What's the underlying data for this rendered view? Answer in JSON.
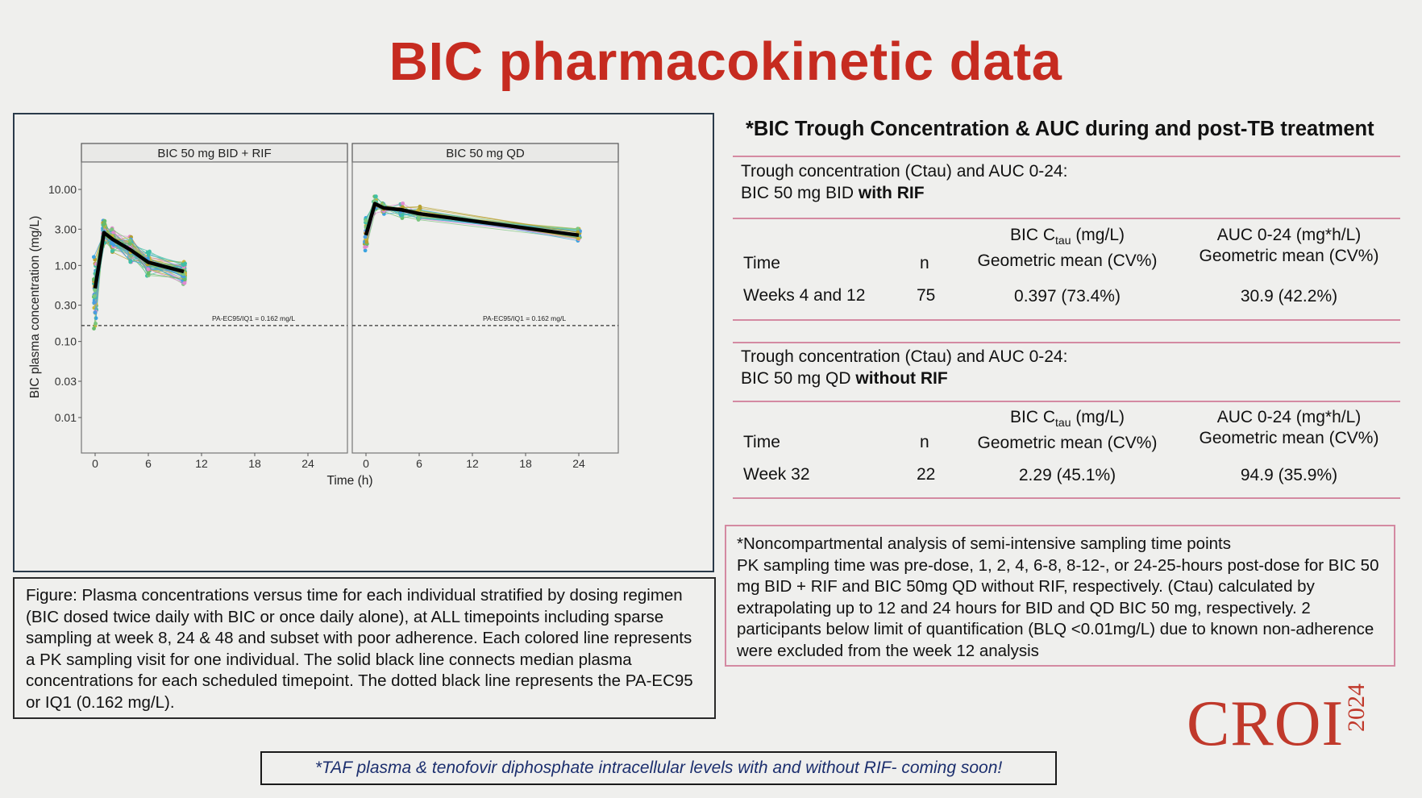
{
  "slide": {
    "title": "BIC pharmacokinetic data",
    "right_heading": "*BIC Trough Concentration & AUC during and post-TB treatment",
    "footer": "*TAF plasma & tenofovir diphosphate intracellular levels with and without RIF- coming soon!",
    "logo_text": "CROI",
    "logo_year": "2024"
  },
  "figure_caption": "Figure: Plasma concentrations versus time for each individual stratified by dosing regimen (BIC dosed twice daily with BIC or once daily alone), at ALL timepoints including sparse sampling at week 8, 24 & 48 and subset with poor adherence. Each colored line represents a PK sampling visit for one individual. The solid black line connects median plasma concentrations for each scheduled timepoint. The dotted black line represents the PA-EC95 or IQ1 (0.162 mg/L).",
  "table1": {
    "heading_line1": "Trough concentration (Ctau) and AUC 0-24:",
    "heading_line2_prefix": "BIC 50 mg BID ",
    "heading_line2_bold": "with RIF",
    "col_time": "Time",
    "col_n": "n",
    "col_ctau_prefix": "BIC  C",
    "col_ctau_sub": "tau",
    "col_ctau_suffix": " (mg/L)",
    "col_ctau_line2": "Geometric mean (CV%)",
    "col_auc_line1": "AUC 0-24 (mg*h/L)",
    "col_auc_line2": "Geometric mean (CV%)",
    "row_time": "Weeks 4 and 12",
    "row_n": "75",
    "row_ctau": "0.397 (73.4%)",
    "row_auc": "30.9 (42.2%)"
  },
  "table2": {
    "heading_line1": "Trough concentration (Ctau) and AUC 0-24:",
    "heading_line2_prefix": "BIC 50 mg QD ",
    "heading_line2_bold": "without RIF",
    "col_time": "Time",
    "col_n": "n",
    "col_ctau_prefix": "BIC  C",
    "col_ctau_sub": "tau",
    "col_ctau_suffix": " (mg/L)",
    "col_ctau_line2": "Geometric mean (CV%)",
    "col_auc_line1": "AUC 0-24 (mg*h/L)",
    "col_auc_line2": "Geometric mean (CV%)",
    "row_time": "Week 32",
    "row_n": "22",
    "row_ctau": "2.29 (45.1%)",
    "row_auc": "94.9 (35.9%)"
  },
  "notes": {
    "line1": "*Noncompartmental analysis of semi-intensive sampling time points",
    "body": "PK sampling time was pre-dose, 1, 2, 4, 6-8, 8-12-, or 24-25-hours post-dose  for BIC 50 mg BID + RIF and BIC 50mg QD without RIF, respectively. (Ctau) calculated by extrapolating up to 12 and 24 hours for BID and QD BIC 50 mg, respectively. 2 participants below limit of quantification (BLQ <0.01mg/L)  due to known non-adherence were excluded from the week 12 analysis"
  },
  "chart_data": {
    "type": "line",
    "ylabel": "BIC plasma concentration (mg/L)",
    "xlabel": "Time (h)",
    "y_scale": "log",
    "ylim": [
      0.005,
      20
    ],
    "y_ticks": [
      10,
      3,
      1,
      0.3,
      0.1,
      0.03,
      0.01
    ],
    "y_tick_labels": [
      "10.00",
      "3.00",
      "1.00",
      "0.30",
      "0.10",
      "0.03",
      "0.01"
    ],
    "xlim": [
      -1.5,
      26
    ],
    "x_ticks": [
      0,
      6,
      12,
      18,
      24
    ],
    "x_tick_labels": [
      "0",
      "6",
      "12",
      "18",
      "24"
    ],
    "threshold": {
      "value": 0.162,
      "label": "PA-EC95/IQ1 = 0.162 mg/L"
    },
    "individual_colors": [
      "#3aa3e0",
      "#e08ad0",
      "#66bb6a",
      "#c8b43a",
      "#3fbfa6",
      "#4a9de0",
      "#7bc67e",
      "#b5a02e"
    ],
    "panels": [
      {
        "title": "BIC 50 mg BID + RIF",
        "median": {
          "x": [
            0,
            1,
            2,
            4,
            6,
            10
          ],
          "y": [
            0.5,
            2.7,
            2.2,
            1.6,
            1.1,
            0.83
          ]
        }
      },
      {
        "title": "BIC 50 mg QD",
        "median": {
          "x": [
            0,
            1,
            2,
            4,
            6,
            24
          ],
          "y": [
            2.5,
            6.5,
            5.7,
            5.4,
            4.8,
            2.5
          ]
        }
      }
    ]
  }
}
